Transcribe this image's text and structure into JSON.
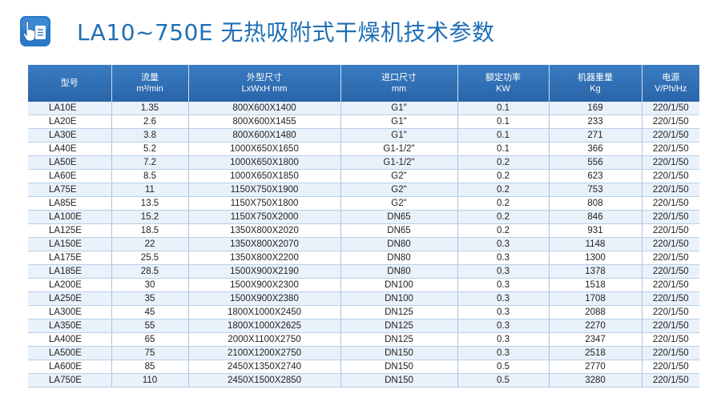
{
  "title": "LA10~750E 无热吸附式干燥机技术参数",
  "icon": "hand-pointer-document-icon",
  "colors": {
    "title": "#1f6fb5",
    "header_bg": "#2f6fb4",
    "row_alt": "#e9f1fa"
  },
  "table": {
    "headers": [
      {
        "line1": "型号",
        "line2": ""
      },
      {
        "line1": "流量",
        "line2": "m³/min"
      },
      {
        "line1": "外型尺寸",
        "line2": "LxWxH mm"
      },
      {
        "line1": "进口尺寸",
        "line2": "mm"
      },
      {
        "line1": "额定功率",
        "line2": "KW"
      },
      {
        "line1": "机器重量",
        "line2": "Kg"
      },
      {
        "line1": "电源",
        "line2": "V/Ph/Hz"
      }
    ],
    "rows": [
      [
        "LA10E",
        "1.35",
        "800X600X1400",
        "G1\"",
        "0.1",
        "169",
        "220/1/50"
      ],
      [
        "LA20E",
        "2.6",
        "800X600X1455",
        "G1\"",
        "0.1",
        "233",
        "220/1/50"
      ],
      [
        "LA30E",
        "3.8",
        "800X600X1480",
        "G1\"",
        "0.1",
        "271",
        "220/1/50"
      ],
      [
        "LA40E",
        "5.2",
        "1000X650X1650",
        "G1-1/2\"",
        "0.1",
        "366",
        "220/1/50"
      ],
      [
        "LA50E",
        "7.2",
        "1000X650X1800",
        "G1-1/2\"",
        "0.2",
        "556",
        "220/1/50"
      ],
      [
        "LA60E",
        "8.5",
        "1000X650X1850",
        "G2\"",
        "0.2",
        "623",
        "220/1/50"
      ],
      [
        "LA75E",
        "11",
        "1150X750X1900",
        "G2\"",
        "0.2",
        "753",
        "220/1/50"
      ],
      [
        "LA85E",
        "13.5",
        "1150X750X1800",
        "G2\"",
        "0.2",
        "808",
        "220/1/50"
      ],
      [
        "LA100E",
        "15.2",
        "1150X750X2000",
        "DN65",
        "0.2",
        "846",
        "220/1/50"
      ],
      [
        "LA125E",
        "18.5",
        "1350X800X2020",
        "DN65",
        "0.2",
        "931",
        "220/1/50"
      ],
      [
        "LA150E",
        "22",
        "1350X800X2070",
        "DN80",
        "0.3",
        "1148",
        "220/1/50"
      ],
      [
        "LA175E",
        "25.5",
        "1350X800X2200",
        "DN80",
        "0.3",
        "1300",
        "220/1/50"
      ],
      [
        "LA185E",
        "28.5",
        "1500X900X2190",
        "DN80",
        "0.3",
        "1378",
        "220/1/50"
      ],
      [
        "LA200E",
        "30",
        "1500X900X2300",
        "DN100",
        "0.3",
        "1518",
        "220/1/50"
      ],
      [
        "LA250E",
        "35",
        "1500X900X2380",
        "DN100",
        "0.3",
        "1708",
        "220/1/50"
      ],
      [
        "LA300E",
        "45",
        "1800X1000X2450",
        "DN125",
        "0.3",
        "2088",
        "220/1/50"
      ],
      [
        "LA350E",
        "55",
        "1800X1000X2625",
        "DN125",
        "0.3",
        "2270",
        "220/1/50"
      ],
      [
        "LA400E",
        "65",
        "2000X1100X2750",
        "DN125",
        "0.3",
        "2347",
        "220/1/50"
      ],
      [
        "LA500E",
        "75",
        "2100X1200X2750",
        "DN150",
        "0.3",
        "2518",
        "220/1/50"
      ],
      [
        "LA600E",
        "85",
        "2450X1350X2740",
        "DN150",
        "0.5",
        "2770",
        "220/1/50"
      ],
      [
        "LA750E",
        "110",
        "2450X1500X2850",
        "DN150",
        "0.5",
        "3280",
        "220/1/50"
      ]
    ]
  }
}
